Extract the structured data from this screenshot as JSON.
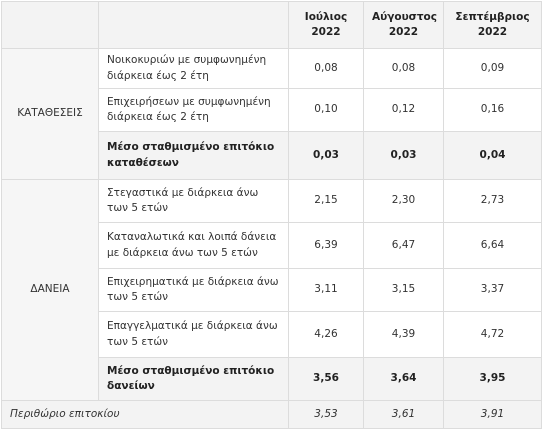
{
  "header": {
    "columns": [
      "Ιούλιος\n2022",
      "Αύγουστος\n2022",
      "Σεπτέμβριος\n2022"
    ]
  },
  "groups": [
    {
      "label": "ΚΑΤΑΘΕΣΕΙΣ",
      "rows": [
        {
          "label": "Νοικοκυριών με συμφωνημένη διάρκεια έως 2 έτη",
          "values": [
            "0,08",
            "0,08",
            "0,09"
          ],
          "bold": false
        },
        {
          "label": "Επιχειρήσεων με συμφωνημένη διάρκεια έως 2 έτη",
          "values": [
            "0,10",
            "0,12",
            "0,16"
          ],
          "bold": false
        },
        {
          "label": "Μέσο σταθμισμένο επιτόκιο καταθέσεων",
          "values": [
            "0,03",
            "0,03",
            "0,04"
          ],
          "bold": true
        }
      ]
    },
    {
      "label": "ΔΑΝΕΙΑ",
      "rows": [
        {
          "label": "Στεγαστικά με διάρκεια άνω των 5 ετών",
          "values": [
            "2,15",
            "2,30",
            "2,73"
          ],
          "bold": false
        },
        {
          "label": "Καταναλωτικά και λοιπά δάνεια με διάρκεια άνω των 5 ετών",
          "values": [
            "6,39",
            "6,47",
            "6,64"
          ],
          "bold": false
        },
        {
          "label": "Επιχειρηματικά με διάρκεια άνω των 5 ετών",
          "values": [
            "3,11",
            "3,15",
            "3,37"
          ],
          "bold": false
        },
        {
          "label": "Επαγγελματικά με διάρκεια άνω των 5 ετών",
          "values": [
            "4,26",
            "4,39",
            "4,72"
          ],
          "bold": false
        },
        {
          "label": "Μέσο σταθμισμένο επιτόκιο δανείων",
          "values": [
            "3,56",
            "3,64",
            "3,95"
          ],
          "bold": true
        }
      ]
    }
  ],
  "footer": {
    "label": "Περιθώριο επιτοκίου",
    "values": [
      "3,53",
      "3,61",
      "3,91"
    ]
  }
}
